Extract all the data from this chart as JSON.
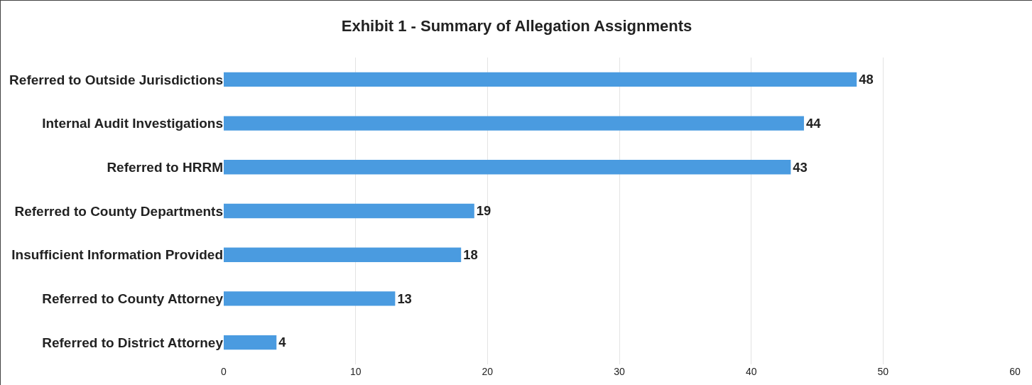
{
  "chart_data": {
    "type": "bar",
    "orientation": "horizontal",
    "title": "Exhibit 1 - Summary of Allegation Assignments",
    "categories": [
      "Referred to Outside Jurisdictions",
      "Internal Audit Investigations",
      "Referred to HRRM",
      "Referred to County Departments",
      "Insufficient Information Provided",
      "Referred to County Attorney",
      "Referred to District Attorney"
    ],
    "values": [
      48,
      44,
      43,
      19,
      18,
      13,
      4
    ],
    "color": "#4a9be0",
    "xlim": [
      0,
      60
    ],
    "xticks": [
      0,
      10,
      20,
      30,
      40,
      50,
      60
    ],
    "grid": "x",
    "data_labels": true
  }
}
